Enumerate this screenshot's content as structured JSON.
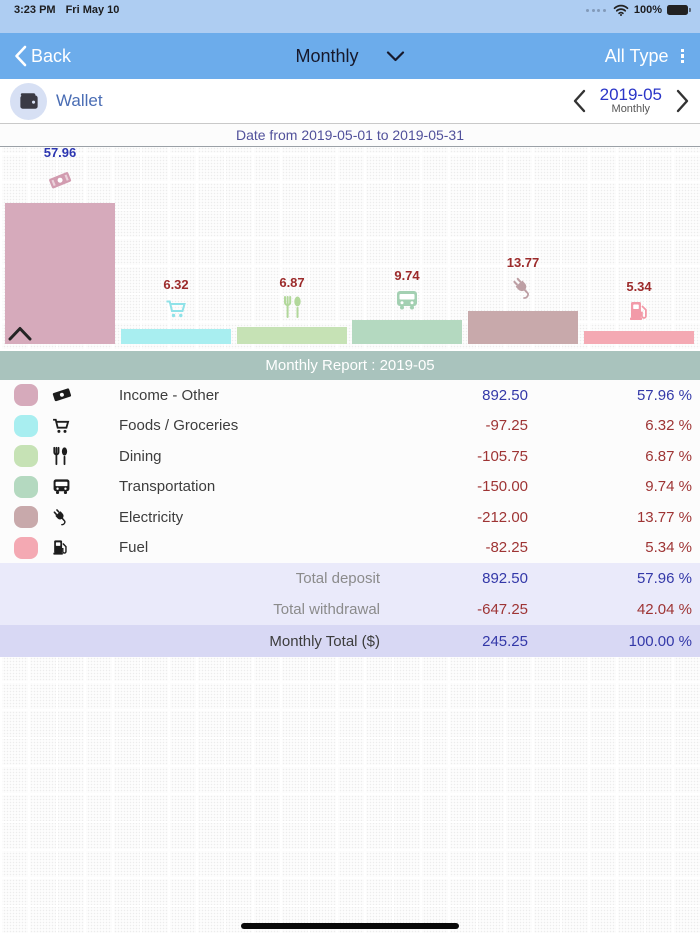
{
  "status_bar": {
    "time": "3:23 PM",
    "date": "Fri May 10",
    "battery_pct": "100%"
  },
  "nav": {
    "back_label": "Back",
    "period_mode": "Monthly",
    "type_filter": "All Type"
  },
  "wallet": {
    "name": "Wallet",
    "period_value": "2019-05",
    "period_sub": "Monthly"
  },
  "date_range": "Date from 2019-05-01 to 2019-05-31",
  "report": {
    "title": "Monthly Report : 2019-05"
  },
  "chart_data": {
    "type": "bar",
    "categories": [
      "Income - Other",
      "Foods / Groceries",
      "Dining",
      "Transportation",
      "Electricity",
      "Fuel"
    ],
    "values": [
      57.96,
      6.32,
      6.87,
      9.74,
      13.77,
      5.34
    ],
    "labels": [
      "57.96",
      "6.32",
      "6.87",
      "9.74",
      "13.77",
      "5.34"
    ],
    "label_colors": [
      "#2b35b0",
      "#9c2b2b",
      "#9c2b2b",
      "#9c2b2b",
      "#9c2b2b",
      "#9c2b2b"
    ],
    "bar_colors": [
      "#d6aabb",
      "#a8eef0",
      "#c6e2b5",
      "#b4d9c0",
      "#c8a9ab",
      "#f4a9b3"
    ],
    "icons": [
      "banknote-icon",
      "cart-icon",
      "dining-icon",
      "bus-icon",
      "plug-icon",
      "fuel-icon"
    ],
    "ylim": [
      0,
      100
    ],
    "grid": false,
    "title": "Monthly Report : 2019-05"
  },
  "table": {
    "rows": [
      {
        "label": "Income - Other",
        "amount": "892.50",
        "percent": "57.96 %",
        "type": "deposit",
        "icon": "banknote-icon",
        "color": "#d6aabb"
      },
      {
        "label": "Foods / Groceries",
        "amount": "-97.25",
        "percent": "6.32 %",
        "type": "withdrawal",
        "icon": "cart-icon",
        "color": "#a8eef0"
      },
      {
        "label": "Dining",
        "amount": "-105.75",
        "percent": "6.87 %",
        "type": "withdrawal",
        "icon": "dining-icon",
        "color": "#c6e2b5"
      },
      {
        "label": "Transportation",
        "amount": "-150.00",
        "percent": "9.74 %",
        "type": "withdrawal",
        "icon": "bus-icon",
        "color": "#b4d9c0"
      },
      {
        "label": "Electricity",
        "amount": "-212.00",
        "percent": "13.77 %",
        "type": "withdrawal",
        "icon": "plug-icon",
        "color": "#c8a9ab"
      },
      {
        "label": "Fuel",
        "amount": "-82.25",
        "percent": "5.34 %",
        "type": "withdrawal",
        "icon": "fuel-icon",
        "color": "#f4a9b3"
      }
    ],
    "totals": [
      {
        "label": "Total deposit",
        "amount": "892.50",
        "percent": "57.96 %",
        "type": "deposit"
      },
      {
        "label": "Total withdrawal",
        "amount": "-647.25",
        "percent": "42.04 %",
        "type": "withdrawal"
      },
      {
        "label": "Monthly Total ($)",
        "amount": "245.25",
        "percent": "100.00 %",
        "type": "deposit"
      }
    ]
  },
  "colors": {
    "status_bg": "#aecdf2",
    "nav_bg": "#6caceb",
    "accent_blue": "#3338a8",
    "negative_red": "#9e3434",
    "header_sage": "#a9c3bd",
    "total_row_bg": "#eaeafa",
    "grand_total_bg": "#d8d8f4",
    "wallet_link": "#4a6db4"
  }
}
